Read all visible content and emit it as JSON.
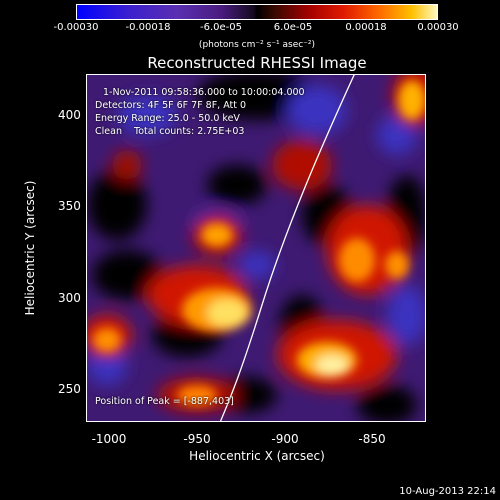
{
  "colorbar": {
    "ticks": [
      "-0.00030",
      "-0.00018",
      "-6.0e-05",
      "6.0e-05",
      "0.00018",
      "0.00030"
    ],
    "unit": "(photons cm⁻² s⁻¹ asec⁻²)"
  },
  "title": "Reconstructed RHESSI Image",
  "info": {
    "time": "1-Nov-2011 09:58:36.000 to 10:00:04.000",
    "detectors": "Detectors: 4F 5F 6F 7F 8F, Att 0",
    "energy": "Energy Range: 25.0 - 50.0 keV",
    "clean": "Clean    Total counts: 2.75E+03",
    "peak": "Position of Peak = [-887,403]"
  },
  "axes": {
    "xlabel": "Heliocentric X (arcsec)",
    "ylabel": "Heliocentric Y (arcsec)",
    "xticks": [
      "-1000",
      "-950",
      "-900",
      "-850"
    ],
    "yticks": [
      "400",
      "350",
      "300",
      "250"
    ]
  },
  "timestamp": "10-Aug-2013 22:14"
}
